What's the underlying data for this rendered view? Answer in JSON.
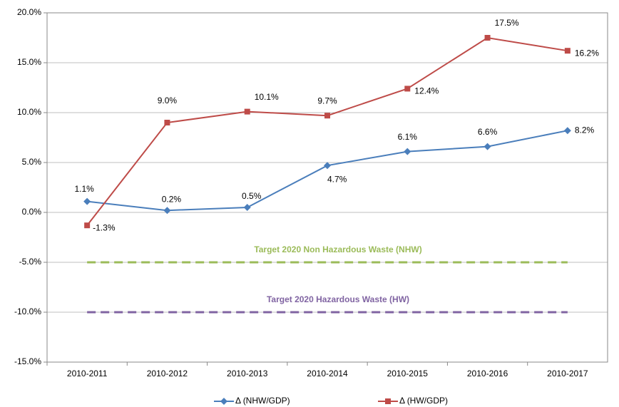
{
  "chart_data": {
    "type": "line",
    "categories": [
      "2010-2011",
      "2010-2012",
      "2010-2013",
      "2010-2014",
      "2010-2015",
      "2010-2016",
      "2010-2017"
    ],
    "series": [
      {
        "name": "Δ (NHW/GDP)",
        "color": "#4a7ebb",
        "marker": "diamond",
        "values": [
          1.1,
          0.2,
          0.5,
          4.7,
          6.1,
          6.6,
          8.2
        ],
        "value_labels": [
          "1.1%",
          "0.2%",
          "0.5%",
          "4.7%",
          "6.1%",
          "6.6%",
          "8.2%"
        ]
      },
      {
        "name": "Δ (HW/GDP)",
        "color": "#be4b48",
        "marker": "square",
        "values": [
          -1.3,
          9.0,
          10.1,
          9.7,
          12.4,
          17.5,
          16.2
        ],
        "value_labels": [
          "-1.3%",
          "9.0%",
          "10.1%",
          "9.7%",
          "12.4%",
          "17.5%",
          "16.2%"
        ]
      }
    ],
    "target_lines": [
      {
        "label": "Target 2020 Non Hazardous Waste (NHW)",
        "value": -5,
        "color": "#9bbb59"
      },
      {
        "label": "Target 2020 Hazardous Waste (HW)",
        "value": -10,
        "color": "#8064a2"
      }
    ],
    "ylim": [
      -15,
      20
    ],
    "yticks": [
      {
        "value": -15,
        "label": "-15.0%"
      },
      {
        "value": -10,
        "label": "-10.0%"
      },
      {
        "value": -5,
        "label": "-5.0%"
      },
      {
        "value": 0,
        "label": "0.0%"
      },
      {
        "value": 5,
        "label": "5.0%"
      },
      {
        "value": 10,
        "label": "10.0%"
      },
      {
        "value": 15,
        "label": "15.0%"
      },
      {
        "value": 20,
        "label": "20.0%"
      }
    ],
    "grid": true,
    "legend": "bottom"
  }
}
